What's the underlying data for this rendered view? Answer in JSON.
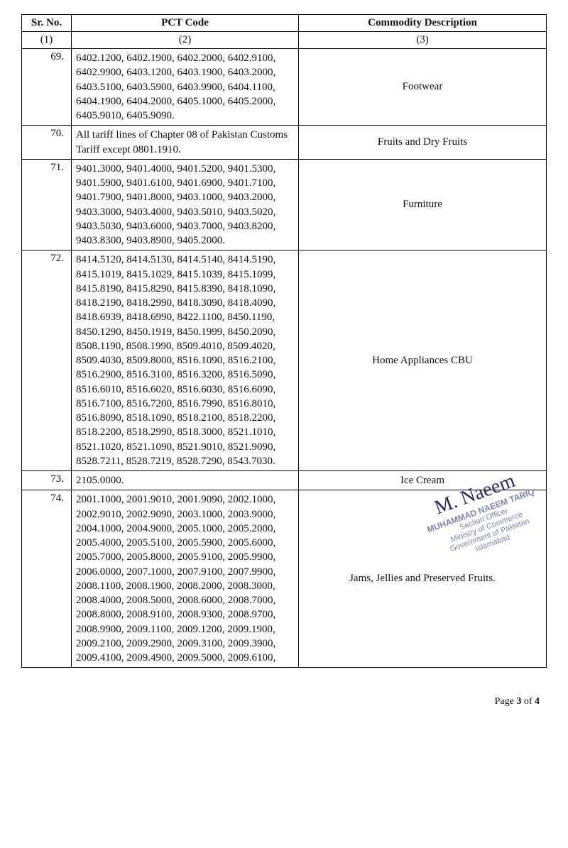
{
  "table": {
    "headers": {
      "sr": "Sr. No.",
      "pct": "PCT Code",
      "desc": "Commodity Description"
    },
    "subheaders": {
      "sr": "(1)",
      "pct": "(2)",
      "desc": "(3)"
    },
    "rows": [
      {
        "sr": "69.",
        "pct": "6402.1200, 6402.1900, 6402.2000, 6402.9100, 6402.9900, 6403.1200, 6403.1900, 6403.2000, 6403.5100, 6403.5900, 6403.9900, 6404.1100, 6404.1900, 6404.2000, 6405.1000, 6405.2000, 6405.9010, 6405.9090.",
        "desc": "Footwear"
      },
      {
        "sr": "70.",
        "pct": "All tariff lines of Chapter 08 of Pakistan Customs Tariff except 0801.1910.",
        "desc": "Fruits  and  Dry  Fruits"
      },
      {
        "sr": "71.",
        "pct": "9401.3000, 9401.4000, 9401.5200, 9401.5300, 9401.5900, 9401.6100, 9401.6900, 9401.7100, 9401.7900, 9401.8000, 9403.1000, 9403.2000, 9403.3000, 9403.4000, 9403.5010, 9403.5020, 9403.5030, 9403.6000, 9403.7000, 9403.8200, 9403.8300, 9403.8900, 9405.2000.",
        "desc": "Furniture"
      },
      {
        "sr": "72.",
        "pct": "8414.5120, 8414.5130, 8414.5140, 8414.5190, 8415.1019, 8415.1029, 8415.1039, 8415.1099, 8415.8190, 8415.8290, 8415.8390, 8418.1090, 8418.2190, 8418.2990, 8418.3090, 8418.4090, 8418.6939, 8418.6990, 8422.1100, 8450.1190, 8450.1290, 8450.1919, 8450.1999, 8450.2090, 8508.1190, 8508.1990, 8509.4010, 8509.4020, 8509.4030, 8509.8000, 8516.1090, 8516.2100, 8516.2900, 8516.3100, 8516.3200, 8516.5090, 8516.6010, 8516.6020, 8516.6030, 8516.6090, 8516.7100, 8516.7200, 8516.7990, 8516.8010, 8516.8090, 8518.1090, 8518.2100, 8518.2200, 8518.2200, 8518.2990, 8518.3000, 8521.1010, 8521.1020, 8521.1090, 8521.9010, 8521.9090, 8528.7211, 8528.7219, 8528.7290, 8543.7030.",
        "desc": "Home  Appliances  CBU"
      },
      {
        "sr": "73.",
        "pct": "2105.0000.",
        "desc": "Ice  Cream"
      },
      {
        "sr": "74.",
        "pct": "2001.1000, 2001.9010, 2001.9090, 2002.1000, 2002.9010, 2002.9090, 2003.1000, 2003.9000, 2004.1000, 2004.9000, 2005.1000, 2005.2000, 2005.4000, 2005.5100, 2005.5900, 2005.6000, 2005.7000, 2005.8000, 2005.9100, 2005.9900, 2006.0000, 2007.1000, 2007.9100, 2007.9900, 2008.1100, 2008.1900, 2008.2000, 2008.3000, 2008.4000, 2008.5000, 2008.6000, 2008.7000, 2008.8000, 2008.9100, 2008.9300, 2008.9700, 2008.9900, 2009.1100, 2009.1200, 2009.1900, 2009.2100, 2009.2900, 2009.3100, 2009.3900, 2009.4100, 2009.4900, 2009.5000, 2009.6100,",
        "desc": "Jams,  Jellies  and  Preserved  Fruits."
      }
    ]
  },
  "stamp": {
    "signature": "M. Naeem",
    "name": "MUHAMMAD NAEEM TARIQ",
    "line1": "Section Officer",
    "line2": "Ministry of Commerce",
    "line3": "Government of Pakistan",
    "line4": "Islamabad"
  },
  "footer": {
    "prefix": "Page ",
    "current": "3",
    "mid": " of ",
    "total": "4"
  }
}
